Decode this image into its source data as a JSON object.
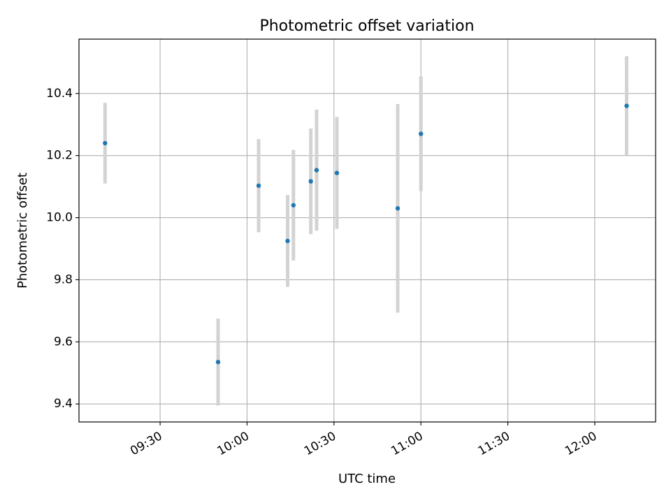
{
  "chart_data": {
    "type": "scatter",
    "title": "Photometric offset variation",
    "xlabel": "UTC time",
    "ylabel": "Photometric offset",
    "x_ticks": [
      "09:30",
      "10:00",
      "10:30",
      "11:00",
      "11:30",
      "12:00"
    ],
    "y_ticks": [
      "9.4",
      "9.6",
      "9.8",
      "10.0",
      "10.2",
      "10.4"
    ],
    "xlim": [
      "09:02",
      "12:21"
    ],
    "ylim": [
      9.342,
      10.575
    ],
    "grid": true,
    "point_color": "#1f77b4",
    "errorbar_color": "#d3d3d3",
    "points": [
      {
        "x": "09:11",
        "y": 10.24,
        "err": 0.13
      },
      {
        "x": "09:50",
        "y": 9.535,
        "err": 0.14
      },
      {
        "x": "10:04",
        "y": 10.103,
        "err": 0.15
      },
      {
        "x": "10:14",
        "y": 9.925,
        "err": 0.148
      },
      {
        "x": "10:16",
        "y": 10.04,
        "err": 0.178
      },
      {
        "x": "10:22",
        "y": 10.117,
        "err": 0.17
      },
      {
        "x": "10:24",
        "y": 10.153,
        "err": 0.195
      },
      {
        "x": "10:31",
        "y": 10.144,
        "err": 0.18
      },
      {
        "x": "10:52",
        "y": 10.03,
        "err": 0.336
      },
      {
        "x": "11:00",
        "y": 10.27,
        "err": 0.185
      },
      {
        "x": "12:11",
        "y": 10.36,
        "err": 0.16
      }
    ]
  }
}
